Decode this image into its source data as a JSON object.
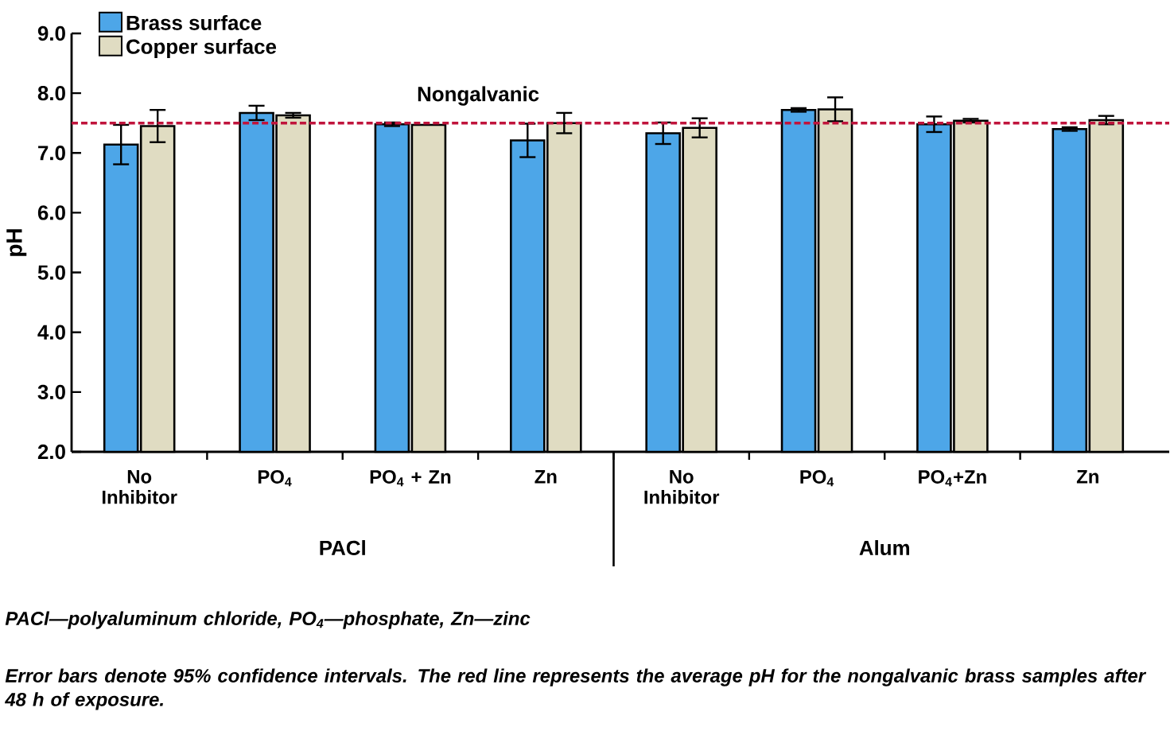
{
  "chart_data": {
    "type": "bar",
    "ylabel": "pH",
    "categories": [
      "No Inhibitor",
      "PO$_{4}$",
      "PO$_{4}$ + Zn",
      "Zn",
      "No Inhibitor",
      "PO$_{4}$",
      "PO$_{4}$+Zn",
      "Zn"
    ],
    "series": [
      {
        "name": "Brass surface",
        "color": "#4da6e8",
        "values": [
          7.14,
          7.67,
          7.48,
          7.21,
          7.33,
          7.72,
          7.48,
          7.4
        ],
        "errors": [
          0.33,
          0.12,
          0.03,
          0.28,
          0.18,
          0.03,
          0.13,
          0.03
        ]
      },
      {
        "name": "Copper surface",
        "color": "#e0dcc2",
        "values": [
          7.45,
          7.63,
          7.47,
          7.5,
          7.42,
          7.73,
          7.54,
          7.55
        ],
        "errors": [
          0.27,
          0.04,
          null,
          0.17,
          0.16,
          0.2,
          0.03,
          0.07
        ]
      }
    ],
    "ylim": [
      2,
      9
    ],
    "yticks": [
      {
        "value": 2,
        "label": "2.0"
      },
      {
        "value": 3,
        "label": "3.0"
      },
      {
        "value": 4,
        "label": "4.0"
      },
      {
        "value": 5,
        "label": "5.0"
      },
      {
        "value": 6,
        "label": "6.0"
      },
      {
        "value": 7,
        "label": "7.0"
      },
      {
        "value": 8,
        "label": "8.0"
      },
      {
        "value": 9,
        "label": "9.0"
      }
    ],
    "ref_lines": [
      {
        "axis": "y",
        "value": 7.5,
        "label": "Nongalvanic",
        "color": "#c0143c",
        "line_style": "dashed"
      }
    ],
    "annotations": [
      "PACl",
      "Alum",
      "PACl—polyaluminum chloride, PO$_{4}$—phosphate, Zn—zinc",
      "Error bars denote 95% confidence intervals. The red line represents the average pH for the nongalvanic brass samples after 48 h of exposure."
    ],
    "legend": "top left",
    "grid": false
  }
}
